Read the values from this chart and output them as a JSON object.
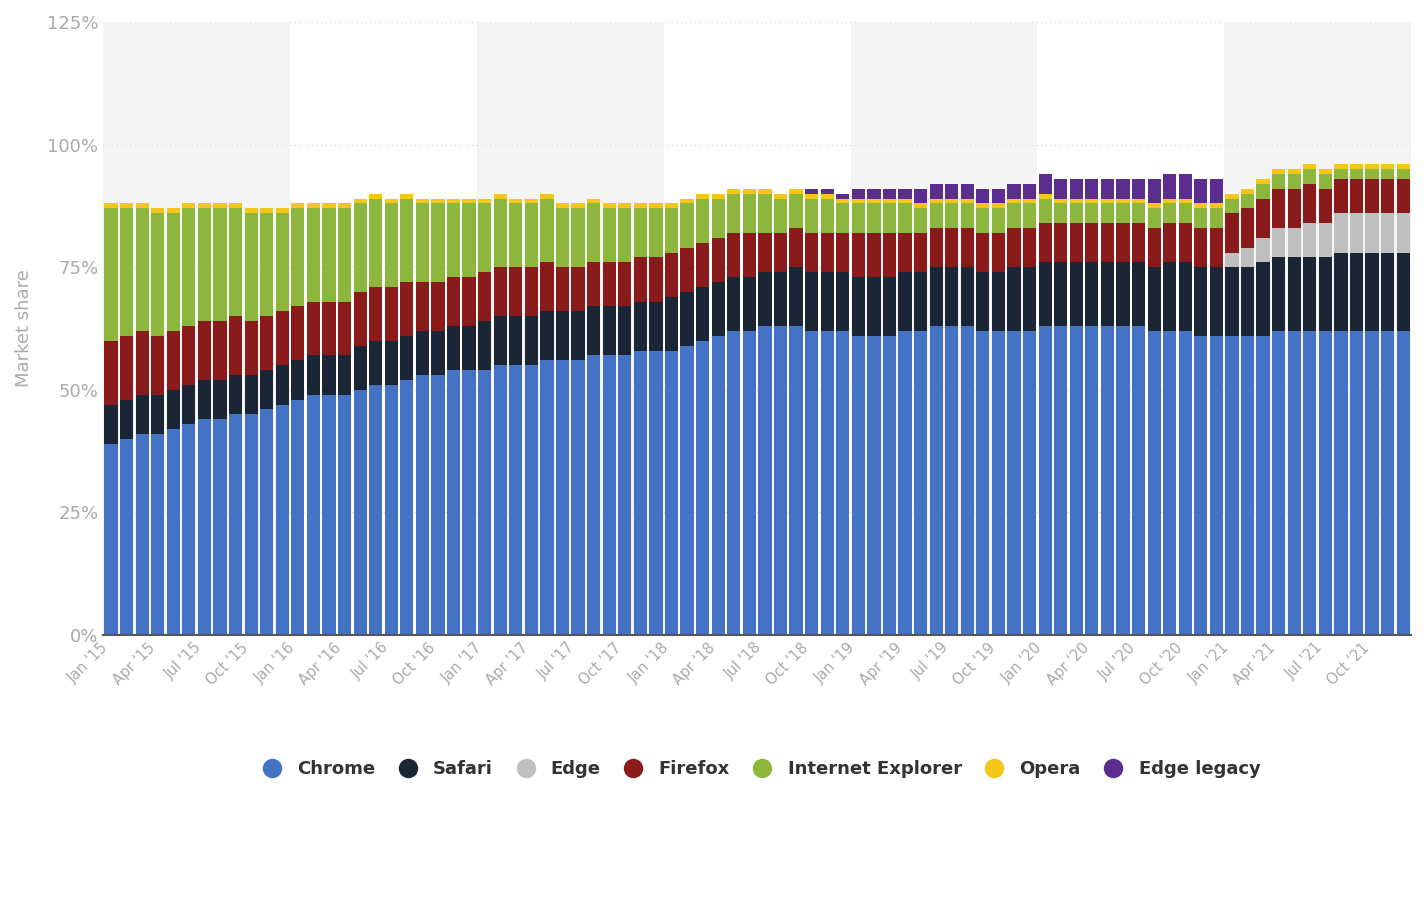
{
  "ylabel": "Market share",
  "background_color": "#ffffff",
  "colors": {
    "Chrome": "#4472c4",
    "Safari": "#1a2535",
    "Edge": "#bfbfbf",
    "Firefox": "#8b1a1a",
    "Internet Explorer": "#8db63c",
    "Opera": "#f5c518",
    "Edge legacy": "#5b2d8e"
  },
  "ylim": [
    0,
    125
  ],
  "yticks": [
    0,
    25,
    50,
    75,
    100,
    125
  ],
  "ytick_labels": [
    "0%",
    "25%",
    "50%",
    "75%",
    "100%",
    "125%"
  ],
  "xtick_positions": [
    0,
    3,
    6,
    9,
    12,
    15,
    18,
    21,
    24,
    27,
    30,
    33,
    36,
    39,
    42,
    45,
    48,
    51,
    54,
    57,
    60,
    63,
    66,
    69,
    72,
    75,
    78,
    81
  ],
  "xtick_labels": [
    "Jan '15",
    "Apr '15",
    "Jul '15",
    "Oct '15",
    "Jan '16",
    "Apr '16",
    "Jul '16",
    "Oct '16",
    "Jan '17",
    "Apr '17",
    "Jul '17",
    "Oct '17",
    "Jan '18",
    "Apr '18",
    "Jul '18",
    "Oct '18",
    "Jan '19",
    "Apr '19",
    "Jul '19",
    "Oct '19",
    "Jan '20",
    "Apr '20",
    "Jul '20",
    "Oct '20",
    "Jan '21",
    "Apr '21",
    "Jul '21",
    "Oct '21"
  ],
  "series_order": [
    "Chrome",
    "Safari",
    "Edge",
    "Firefox",
    "Internet Explorer",
    "Opera",
    "Edge legacy"
  ],
  "data": {
    "Chrome": [
      39,
      40,
      41,
      41,
      42,
      43,
      44,
      44,
      45,
      45,
      46,
      47,
      48,
      49,
      49,
      49,
      50,
      51,
      51,
      52,
      53,
      53,
      54,
      54,
      54,
      55,
      55,
      55,
      56,
      56,
      56,
      57,
      57,
      57,
      58,
      58,
      58,
      59,
      60,
      61,
      62,
      62,
      63,
      63,
      63,
      62,
      62,
      62,
      61,
      61,
      61,
      62,
      62,
      63,
      63,
      63,
      62,
      62,
      62,
      62,
      63,
      63,
      63,
      63,
      63,
      63,
      63,
      62,
      62,
      62,
      61,
      61,
      61,
      61,
      61,
      62,
      62,
      62,
      62,
      62,
      62,
      62,
      62,
      62
    ],
    "Safari": [
      8,
      8,
      8,
      8,
      8,
      8,
      8,
      8,
      8,
      8,
      8,
      8,
      8,
      8,
      8,
      8,
      9,
      9,
      9,
      9,
      9,
      9,
      9,
      9,
      10,
      10,
      10,
      10,
      10,
      10,
      10,
      10,
      10,
      10,
      10,
      10,
      11,
      11,
      11,
      11,
      11,
      11,
      11,
      11,
      12,
      12,
      12,
      12,
      12,
      12,
      12,
      12,
      12,
      12,
      12,
      12,
      12,
      12,
      13,
      13,
      13,
      13,
      13,
      13,
      13,
      13,
      13,
      13,
      14,
      14,
      14,
      14,
      14,
      14,
      15,
      15,
      15,
      15,
      15,
      16,
      16,
      16,
      16,
      16
    ],
    "Edge": [
      0,
      0,
      0,
      0,
      0,
      0,
      0,
      0,
      0,
      0,
      0,
      0,
      0,
      0,
      0,
      0,
      0,
      0,
      0,
      0,
      0,
      0,
      0,
      0,
      0,
      0,
      0,
      0,
      0,
      0,
      0,
      0,
      0,
      0,
      0,
      0,
      0,
      0,
      0,
      0,
      0,
      0,
      0,
      0,
      0,
      0,
      0,
      0,
      0,
      0,
      0,
      0,
      0,
      0,
      0,
      0,
      0,
      0,
      0,
      0,
      0,
      0,
      0,
      0,
      0,
      0,
      0,
      0,
      0,
      0,
      0,
      0,
      3,
      4,
      5,
      6,
      6,
      7,
      7,
      8,
      8,
      8,
      8,
      8
    ],
    "Firefox": [
      13,
      13,
      13,
      12,
      12,
      12,
      12,
      12,
      12,
      11,
      11,
      11,
      11,
      11,
      11,
      11,
      11,
      11,
      11,
      11,
      10,
      10,
      10,
      10,
      10,
      10,
      10,
      10,
      10,
      9,
      9,
      9,
      9,
      9,
      9,
      9,
      9,
      9,
      9,
      9,
      9,
      9,
      8,
      8,
      8,
      8,
      8,
      8,
      9,
      9,
      9,
      8,
      8,
      8,
      8,
      8,
      8,
      8,
      8,
      8,
      8,
      8,
      8,
      8,
      8,
      8,
      8,
      8,
      8,
      8,
      8,
      8,
      8,
      8,
      8,
      8,
      8,
      8,
      7,
      7,
      7,
      7,
      7,
      7
    ],
    "Internet Explorer": [
      27,
      26,
      25,
      25,
      24,
      24,
      23,
      23,
      22,
      22,
      21,
      20,
      20,
      19,
      19,
      19,
      18,
      18,
      17,
      17,
      16,
      16,
      15,
      15,
      14,
      14,
      13,
      13,
      13,
      12,
      12,
      12,
      11,
      11,
      10,
      10,
      9,
      9,
      9,
      8,
      8,
      8,
      8,
      7,
      7,
      7,
      7,
      6,
      6,
      6,
      6,
      6,
      5,
      5,
      5,
      5,
      5,
      5,
      5,
      5,
      5,
      4,
      4,
      4,
      4,
      4,
      4,
      4,
      4,
      4,
      4,
      4,
      3,
      3,
      3,
      3,
      3,
      3,
      3,
      2,
      2,
      2,
      2,
      2
    ],
    "Opera": [
      1,
      1,
      1,
      1,
      1,
      1,
      1,
      1,
      1,
      1,
      1,
      1,
      1,
      1,
      1,
      1,
      1,
      1,
      1,
      1,
      1,
      1,
      1,
      1,
      1,
      1,
      1,
      1,
      1,
      1,
      1,
      1,
      1,
      1,
      1,
      1,
      1,
      1,
      1,
      1,
      1,
      1,
      1,
      1,
      1,
      1,
      1,
      1,
      1,
      1,
      1,
      1,
      1,
      1,
      1,
      1,
      1,
      1,
      1,
      1,
      1,
      1,
      1,
      1,
      1,
      1,
      1,
      1,
      1,
      1,
      1,
      1,
      1,
      1,
      1,
      1,
      1,
      1,
      1,
      1,
      1,
      1,
      1,
      1
    ],
    "Edge legacy": [
      0,
      0,
      0,
      0,
      0,
      0,
      0,
      0,
      0,
      0,
      0,
      0,
      0,
      0,
      0,
      0,
      0,
      0,
      0,
      0,
      0,
      0,
      0,
      0,
      0,
      0,
      0,
      0,
      0,
      0,
      0,
      0,
      0,
      0,
      0,
      0,
      0,
      0,
      0,
      0,
      0,
      0,
      0,
      0,
      0,
      1,
      1,
      1,
      2,
      2,
      2,
      2,
      3,
      3,
      3,
      3,
      3,
      3,
      3,
      3,
      4,
      4,
      4,
      4,
      4,
      4,
      4,
      5,
      5,
      5,
      5,
      5,
      0,
      0,
      0,
      0,
      0,
      0,
      0,
      0,
      0,
      0,
      0,
      0
    ]
  }
}
